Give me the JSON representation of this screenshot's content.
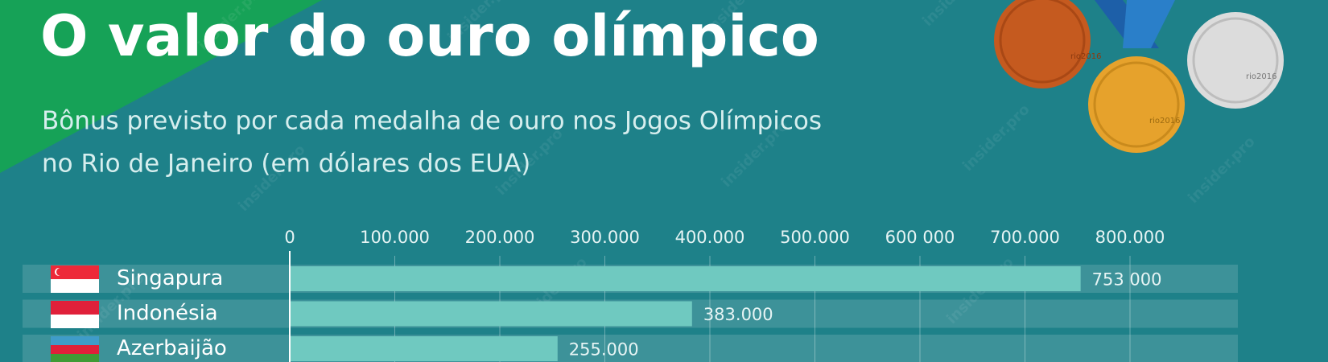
{
  "chart_data": {
    "type": "bar",
    "orientation": "horizontal",
    "title": "O valor do ouro olímpico",
    "subtitle": [
      "Bônus previsto por cada medalha de ouro nos Jogos Olímpicos",
      "no Rio de Janeiro (em dólares dos EUA)"
    ],
    "categories": [
      "Singapura",
      "Indonésia",
      "Azerbaijão"
    ],
    "values": [
      753000,
      383000,
      255000
    ],
    "value_labels": [
      "753 000",
      "383.000",
      "255.000"
    ],
    "color": "#6fc9c0",
    "xlim": [
      0,
      800000
    ],
    "xticks": [
      0,
      {
        "value": 100000,
        "label": "100.000"
      },
      {
        "value": 200000,
        "label": "200.000"
      },
      {
        "value": 300000,
        "label": "300.000"
      },
      {
        "value": 400000,
        "label": "400.000"
      },
      {
        "value": 500000,
        "label": "500.000"
      },
      {
        "value": 600000,
        "label": "600 000"
      },
      {
        "value": 700000,
        "label": "700.000"
      },
      {
        "value": 800000,
        "label": "800.000"
      }
    ],
    "grid": true,
    "medal_text": "rio2016",
    "watermark": "insider.pro"
  }
}
